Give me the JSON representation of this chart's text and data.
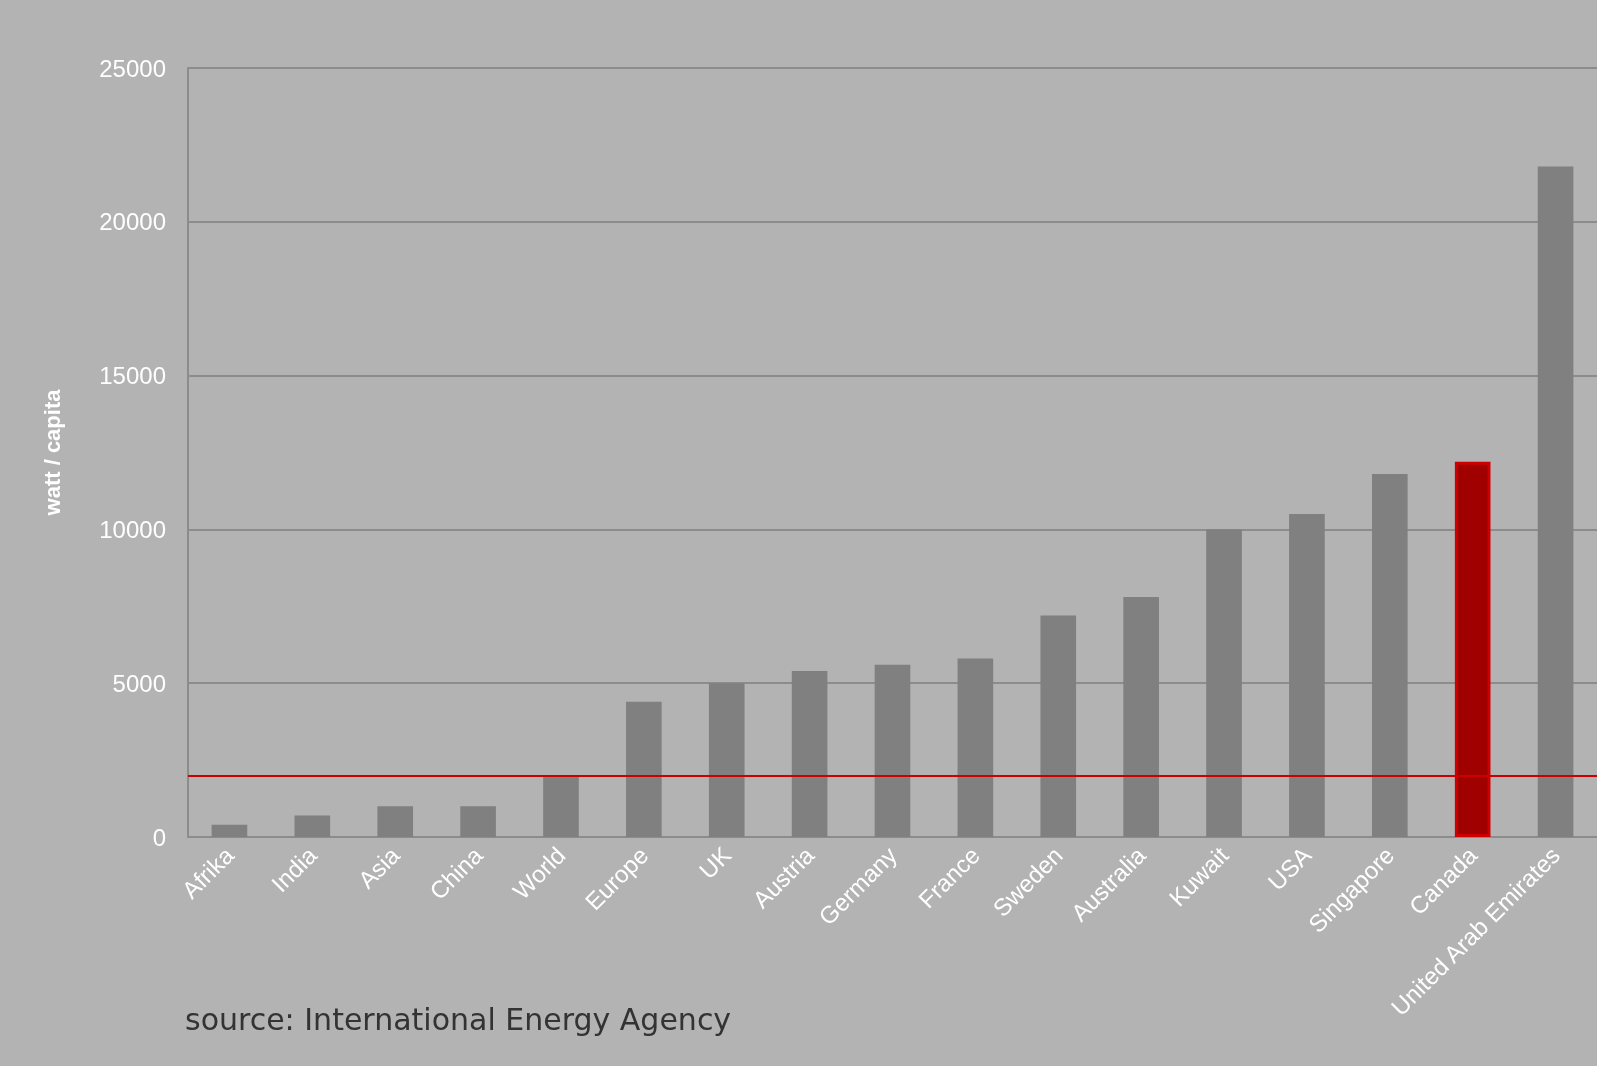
{
  "chart_data": {
    "type": "bar",
    "categories": [
      "Afrika",
      "India",
      "Asia",
      "China",
      "World",
      "Europe",
      "UK",
      "Austria",
      "Germany",
      "France",
      "Sweden",
      "Australia",
      "Kuwait",
      "USA",
      "Singapore",
      "Canada",
      "United Arab Emirates"
    ],
    "values": [
      400,
      700,
      1000,
      1000,
      2000,
      4400,
      5000,
      5400,
      5600,
      5800,
      7200,
      7800,
      10000,
      10500,
      11800,
      12200,
      21800
    ],
    "colors": [
      "#808080",
      "#808080",
      "#808080",
      "#808080",
      "#808080",
      "#808080",
      "#808080",
      "#808080",
      "#808080",
      "#808080",
      "#808080",
      "#808080",
      "#808080",
      "#808080",
      "#808080",
      "#a00000",
      "#808080"
    ],
    "ylabel": "watt / capita",
    "ylim": [
      0,
      25000
    ],
    "yticks": [
      0,
      5000,
      10000,
      15000,
      20000,
      25000
    ],
    "grid": "y",
    "ref_lines": [
      {
        "axis": "y",
        "value": 2000,
        "color": "#cc0000"
      }
    ],
    "annotations": [
      "source: International Energy Agency"
    ]
  }
}
